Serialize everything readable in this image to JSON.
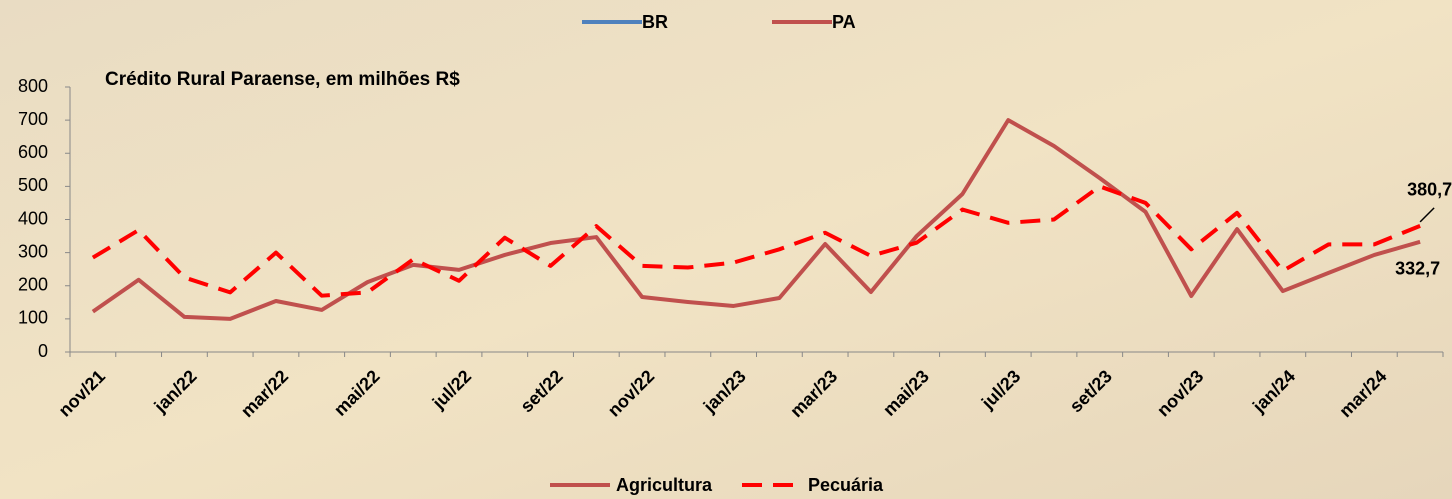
{
  "chart_data": {
    "type": "line",
    "title": "Crédito Rural Paraense, em milhões R$",
    "top_legend": [
      {
        "name": "BR",
        "color": "#4f81bd"
      },
      {
        "name": "PA",
        "color": "#c0504d"
      }
    ],
    "categories": [
      "nov/21",
      null,
      "jan/22",
      null,
      "mar/22",
      null,
      "mai/22",
      null,
      "jul/22",
      null,
      "set/22",
      null,
      "nov/22",
      null,
      "jan/23",
      null,
      "mar/23",
      null,
      "mai/23",
      null,
      "jul/23",
      null,
      "set/23",
      null,
      "nov/23",
      null,
      "jan/24",
      null,
      "mar/24",
      null
    ],
    "series": [
      {
        "name": "Agricultura",
        "color": "#c0504d",
        "dashed": false,
        "values": [
          122,
          218,
          106,
          100,
          154,
          127,
          211,
          263,
          248,
          293,
          329,
          347,
          166,
          151,
          139,
          163,
          326,
          181,
          350,
          477,
          700,
          622,
          525,
          423,
          169,
          371,
          184,
          239,
          293,
          332.7
        ],
        "value_labels": [
          null,
          null,
          null,
          null,
          null,
          null,
          null,
          null,
          null,
          null,
          null,
          null,
          null,
          null,
          null,
          null,
          null,
          null,
          null,
          null,
          null,
          null,
          null,
          null,
          null,
          null,
          null,
          null,
          null,
          "332,7"
        ]
      },
      {
        "name": "Pecuária",
        "color": "#ff0000",
        "dashed": true,
        "values": [
          285,
          368,
          225,
          180,
          300,
          170,
          180,
          280,
          215,
          345,
          260,
          380,
          260,
          255,
          270,
          310,
          360,
          290,
          330,
          430,
          390,
          400,
          500,
          450,
          310,
          420,
          245,
          325,
          325,
          380.7
        ],
        "value_labels": [
          null,
          null,
          null,
          null,
          null,
          null,
          null,
          null,
          null,
          null,
          null,
          null,
          null,
          null,
          null,
          null,
          null,
          null,
          null,
          null,
          null,
          null,
          null,
          null,
          null,
          null,
          null,
          null,
          null,
          "380,7"
        ]
      }
    ],
    "ylim": [
      0,
      800
    ],
    "yticks": [
      0,
      100,
      200,
      300,
      400,
      500,
      600,
      700,
      800
    ]
  }
}
